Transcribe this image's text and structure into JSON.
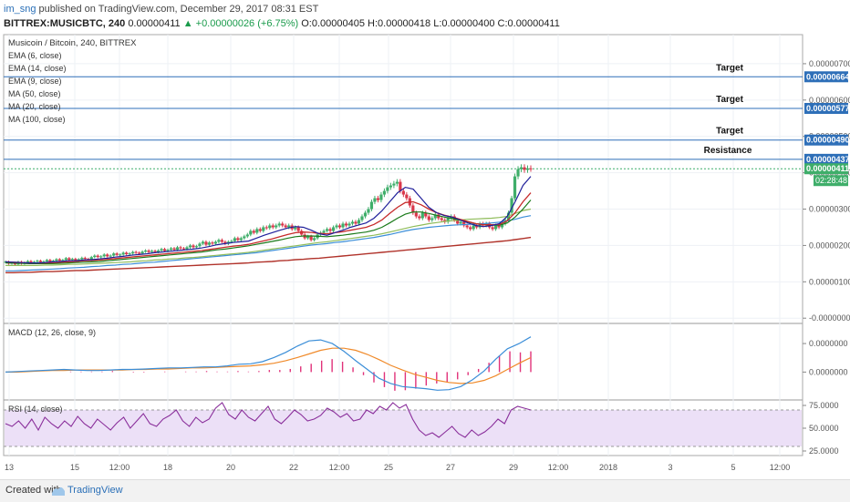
{
  "header": {
    "publisher": "im_sng",
    "published_text": "published on TradingView.com, December 29, 2017 08:31 EST",
    "symbol_line": "BITTREX:MUSICBTC, 240",
    "price": "0.00000411",
    "change": "+0.00000026 (+6.75%)",
    "ohlc": "O:0.00000405 H:0.00000418 L:0.00000400 C:0.00000411"
  },
  "footer": {
    "created": "Created with",
    "brand": "TradingView"
  },
  "colors": {
    "candle_up": "#3fae6a",
    "candle_down": "#d9374b",
    "ema6": "#1f1f9a",
    "ema14": "#c62a2a",
    "ema9": "#1a7a1a",
    "ma50": "#8fbc5a",
    "ma20": "#3b8ed8",
    "ma100": "#b0322a",
    "level_line": "#2e6fb8",
    "macd": "#3b8ed8",
    "signal": "#f08a2a",
    "hist": "#e0327a",
    "rsi": "#8a2f9b",
    "rsi_fill": "#ece0f7"
  },
  "legend": [
    "Musicoin / Bitcoin, 240, BITTREX",
    "EMA (6, close)",
    "EMA (14, close)",
    "EMA (9, close)",
    "MA (50, close)",
    "MA (20, close)",
    "MA (100, close)"
  ],
  "chart_data": [
    {
      "type": "candlestick",
      "title": "Musicoin / Bitcoin, 240, BITTREX",
      "ylim": [
        -1.2e-07,
        7.8e-06
      ],
      "y_ticks": [
        "0.00000700",
        "0.00000600",
        "0.00000500",
        "0.00000400",
        "0.00000300",
        "0.00000200",
        "0.00000100",
        "-0.00000000"
      ],
      "y_tick_values": [
        7e-06,
        6e-06,
        5e-06,
        4e-06,
        3e-06,
        2e-06,
        1e-06,
        0
      ],
      "x_ticks": [
        "13",
        "15",
        "12:00",
        "18",
        "20",
        "22",
        "12:00",
        "25",
        "27",
        "29",
        "12:00",
        "2018",
        "3",
        "5",
        "12:00"
      ],
      "levels": [
        {
          "label": "Target",
          "value": "0.00000664",
          "v": 6.64e-06
        },
        {
          "label": "Target",
          "value": "0.00000577",
          "v": 5.77e-06
        },
        {
          "label": "Target",
          "value": "0.00000490",
          "v": 4.9e-06
        },
        {
          "label": "Resistance",
          "value": "0.00000437",
          "v": 4.37e-06
        }
      ],
      "last_price": {
        "value": "0.00000411",
        "v": 4.11e-06,
        "countdown": "02:28:48"
      },
      "closes": [
        1.55,
        1.5,
        1.52,
        1.48,
        1.55,
        1.5,
        1.53,
        1.57,
        1.52,
        1.55,
        1.58,
        1.54,
        1.56,
        1.6,
        1.55,
        1.58,
        1.62,
        1.58,
        1.6,
        1.65,
        1.6,
        1.63,
        1.58,
        1.62,
        1.66,
        1.63,
        1.6,
        1.68,
        1.72,
        1.68,
        1.7,
        1.75,
        1.7,
        1.72,
        1.78,
        1.74,
        1.75,
        1.8,
        1.76,
        1.78,
        1.82,
        1.8,
        1.78,
        1.83,
        1.86,
        1.82,
        1.85,
        1.82,
        1.86,
        1.9,
        1.85,
        1.88,
        1.92,
        1.88,
        1.95,
        1.92,
        1.9,
        1.95,
        2.0,
        1.95,
        1.98,
        2.05,
        2.1,
        2.02,
        2.08,
        2.05,
        2.1,
        2.15,
        2.1,
        2.05,
        2.1,
        2.12,
        2.2,
        2.15,
        2.2,
        2.25,
        2.3,
        2.4,
        2.35,
        2.45,
        2.4,
        2.5,
        2.48,
        2.55,
        2.5,
        2.55,
        2.6,
        2.55,
        2.5,
        2.55,
        2.45,
        2.5,
        2.4,
        2.3,
        2.2,
        2.25,
        2.15,
        2.2,
        2.3,
        2.35,
        2.4,
        2.45,
        2.4,
        2.5,
        2.55,
        2.5,
        2.6,
        2.55,
        2.6,
        2.65,
        2.6,
        2.7,
        2.8,
        2.9,
        3.0,
        3.2,
        3.3,
        3.25,
        3.4,
        3.5,
        3.6,
        3.65,
        3.7,
        3.75,
        3.5,
        3.4,
        3.3,
        3.1,
        2.9,
        2.8,
        2.75,
        2.9,
        2.8,
        2.7,
        2.75,
        2.85,
        2.75,
        2.7,
        2.65,
        2.75,
        2.8,
        2.7,
        2.6,
        2.65,
        2.55,
        2.5,
        2.45,
        2.55,
        2.5,
        2.6,
        2.55,
        2.6,
        2.5,
        2.45,
        2.55,
        2.5,
        2.6,
        2.7,
        2.9,
        3.3,
        3.9,
        4.1,
        4.15,
        4.08,
        4.12,
        4.11
      ],
      "ema6": [
        1.55,
        1.54,
        1.53,
        1.52,
        1.52,
        1.53,
        1.55,
        1.56,
        1.58,
        1.58,
        1.6,
        1.61,
        1.63,
        1.65,
        1.68,
        1.7,
        1.73,
        1.75,
        1.77,
        1.8,
        1.82,
        1.84,
        1.86,
        1.88,
        1.9,
        1.93,
        1.97,
        2.02,
        2.05,
        2.08,
        2.1,
        2.12,
        2.2,
        2.28,
        2.35,
        2.42,
        2.48,
        2.52,
        2.5,
        2.42,
        2.32,
        2.28,
        2.35,
        2.42,
        2.5,
        2.56,
        2.62,
        2.75,
        2.95,
        3.2,
        3.45,
        3.6,
        3.55,
        3.3,
        3.05,
        2.9,
        2.82,
        2.78,
        2.7,
        2.62,
        2.55,
        2.52,
        2.55,
        2.6,
        2.8,
        3.2,
        3.65,
        3.9
      ],
      "ema14": [
        1.55,
        1.54,
        1.53,
        1.52,
        1.52,
        1.52,
        1.53,
        1.54,
        1.55,
        1.56,
        1.58,
        1.59,
        1.6,
        1.62,
        1.64,
        1.66,
        1.68,
        1.7,
        1.72,
        1.74,
        1.76,
        1.78,
        1.8,
        1.82,
        1.84,
        1.86,
        1.89,
        1.92,
        1.95,
        1.98,
        2.0,
        2.03,
        2.08,
        2.13,
        2.18,
        2.24,
        2.3,
        2.35,
        2.37,
        2.36,
        2.33,
        2.32,
        2.35,
        2.38,
        2.42,
        2.46,
        2.5,
        2.58,
        2.7,
        2.88,
        3.05,
        3.18,
        3.2,
        3.12,
        3.0,
        2.9,
        2.83,
        2.78,
        2.72,
        2.66,
        2.6,
        2.57,
        2.57,
        2.58,
        2.68,
        2.9,
        3.2,
        3.45
      ],
      "ema9": [
        1.52,
        1.52,
        1.51,
        1.5,
        1.5,
        1.5,
        1.5,
        1.51,
        1.52,
        1.53,
        1.54,
        1.55,
        1.56,
        1.58,
        1.6,
        1.62,
        1.64,
        1.66,
        1.68,
        1.7,
        1.72,
        1.74,
        1.76,
        1.78,
        1.8,
        1.82,
        1.85,
        1.88,
        1.9,
        1.93,
        1.96,
        1.99,
        2.03,
        2.07,
        2.11,
        2.15,
        2.2,
        2.24,
        2.26,
        2.26,
        2.25,
        2.24,
        2.26,
        2.28,
        2.31,
        2.34,
        2.37,
        2.42,
        2.5,
        2.62,
        2.75,
        2.86,
        2.92,
        2.92,
        2.88,
        2.83,
        2.78,
        2.74,
        2.7,
        2.65,
        2.6,
        2.57,
        2.56,
        2.56,
        2.62,
        2.78,
        3.0,
        3.25
      ],
      "ma50": [
        1.45,
        1.45,
        1.45,
        1.45,
        1.45,
        1.46,
        1.46,
        1.47,
        1.48,
        1.48,
        1.49,
        1.5,
        1.51,
        1.52,
        1.53,
        1.54,
        1.55,
        1.57,
        1.58,
        1.6,
        1.61,
        1.63,
        1.64,
        1.66,
        1.67,
        1.69,
        1.71,
        1.73,
        1.75,
        1.77,
        1.79,
        1.81,
        1.84,
        1.87,
        1.9,
        1.93,
        1.96,
        1.99,
        2.02,
        2.05,
        2.08,
        2.1,
        2.13,
        2.16,
        2.19,
        2.22,
        2.25,
        2.28,
        2.32,
        2.37,
        2.42,
        2.47,
        2.52,
        2.56,
        2.6,
        2.63,
        2.66,
        2.68,
        2.7,
        2.72,
        2.73,
        2.74,
        2.75,
        2.77,
        2.8,
        2.88,
        2.96,
        3.0
      ],
      "ma20": [
        1.3,
        1.3,
        1.31,
        1.32,
        1.33,
        1.34,
        1.35,
        1.36,
        1.38,
        1.39,
        1.4,
        1.42,
        1.43,
        1.45,
        1.46,
        1.48,
        1.49,
        1.51,
        1.53,
        1.54,
        1.56,
        1.58,
        1.6,
        1.62,
        1.64,
        1.66,
        1.68,
        1.7,
        1.72,
        1.74,
        1.76,
        1.78,
        1.8,
        1.83,
        1.86,
        1.89,
        1.92,
        1.95,
        1.98,
        2.01,
        2.03,
        2.05,
        2.08,
        2.1,
        2.13,
        2.16,
        2.19,
        2.22,
        2.26,
        2.3,
        2.35,
        2.4,
        2.44,
        2.47,
        2.5,
        2.52,
        2.54,
        2.56,
        2.57,
        2.58,
        2.59,
        2.6,
        2.62,
        2.64,
        2.68,
        2.72,
        2.78,
        2.82
      ],
      "ma100": [
        1.25,
        1.25,
        1.26,
        1.26,
        1.27,
        1.28,
        1.28,
        1.29,
        1.3,
        1.31,
        1.31,
        1.32,
        1.33,
        1.34,
        1.35,
        1.36,
        1.37,
        1.38,
        1.39,
        1.4,
        1.41,
        1.42,
        1.43,
        1.44,
        1.45,
        1.46,
        1.47,
        1.48,
        1.49,
        1.5,
        1.51,
        1.52,
        1.54,
        1.55,
        1.56,
        1.58,
        1.59,
        1.61,
        1.62,
        1.64,
        1.65,
        1.67,
        1.69,
        1.71,
        1.73,
        1.75,
        1.77,
        1.79,
        1.81,
        1.83,
        1.85,
        1.87,
        1.89,
        1.91,
        1.93,
        1.95,
        1.97,
        1.99,
        2.01,
        2.03,
        2.05,
        2.07,
        2.09,
        2.11,
        2.13,
        2.16,
        2.19,
        2.22
      ]
    },
    {
      "type": "line",
      "title": "MACD (12, 26, close, 9)",
      "y_ticks": [
        "0.0000000",
        "0.0000000"
      ],
      "macd": [
        0,
        0.01,
        0.02,
        0.03,
        0.04,
        0.05,
        0.04,
        0.03,
        0.03,
        0.04,
        0.05,
        0.05,
        0.06,
        0.07,
        0.08,
        0.08,
        0.09,
        0.1,
        0.1,
        0.12,
        0.15,
        0.16,
        0.2,
        0.28,
        0.38,
        0.5,
        0.6,
        0.62,
        0.55,
        0.4,
        0.22,
        0.05,
        -0.12,
        -0.22,
        -0.28,
        -0.3,
        -0.32,
        -0.35,
        -0.34,
        -0.28,
        -0.15,
        0.02,
        0.25,
        0.45,
        0.55,
        0.68
      ],
      "signal": [
        0,
        0.0,
        0.01,
        0.02,
        0.03,
        0.03,
        0.04,
        0.04,
        0.04,
        0.04,
        0.04,
        0.05,
        0.05,
        0.06,
        0.06,
        0.07,
        0.08,
        0.08,
        0.09,
        0.1,
        0.11,
        0.12,
        0.14,
        0.17,
        0.22,
        0.28,
        0.35,
        0.42,
        0.46,
        0.46,
        0.42,
        0.34,
        0.24,
        0.13,
        0.04,
        -0.04,
        -0.1,
        -0.16,
        -0.2,
        -0.22,
        -0.21,
        -0.16,
        -0.07,
        0.05,
        0.17,
        0.28
      ],
      "hist": [
        0,
        0.01,
        0.01,
        0.01,
        0.01,
        0.02,
        0.0,
        -0.01,
        -0.01,
        0.0,
        0.01,
        0.0,
        0.01,
        0.01,
        0.02,
        0.01,
        0.01,
        0.02,
        0.01,
        0.02,
        0.04,
        0.04,
        0.06,
        0.11,
        0.16,
        0.22,
        0.25,
        0.2,
        0.09,
        -0.06,
        -0.2,
        -0.29,
        -0.36,
        -0.35,
        -0.32,
        -0.26,
        -0.22,
        -0.19,
        -0.14,
        -0.06,
        0.06,
        0.18,
        0.32,
        0.4,
        0.38,
        0.4
      ]
    },
    {
      "type": "line",
      "title": "RSI (14, close)",
      "ylim": [
        20,
        80
      ],
      "y_ticks": [
        "75.0000",
        "50.0000",
        "25.0000"
      ],
      "y_tick_values": [
        75,
        50,
        25
      ],
      "bands": [
        70,
        30
      ],
      "values": [
        55,
        52,
        58,
        50,
        60,
        48,
        62,
        55,
        50,
        58,
        52,
        63,
        55,
        50,
        60,
        54,
        48,
        56,
        62,
        50,
        58,
        66,
        55,
        52,
        60,
        64,
        70,
        58,
        52,
        62,
        56,
        60,
        72,
        78,
        65,
        60,
        70,
        62,
        58,
        66,
        74,
        60,
        55,
        62,
        70,
        65,
        58,
        60,
        64,
        72,
        68,
        62,
        66,
        58,
        60,
        70,
        66,
        74,
        70,
        78,
        72,
        76,
        60,
        48,
        42,
        45,
        40,
        46,
        52,
        44,
        40,
        48,
        42,
        46,
        52,
        60,
        55,
        70,
        74,
        72,
        70
      ]
    }
  ]
}
